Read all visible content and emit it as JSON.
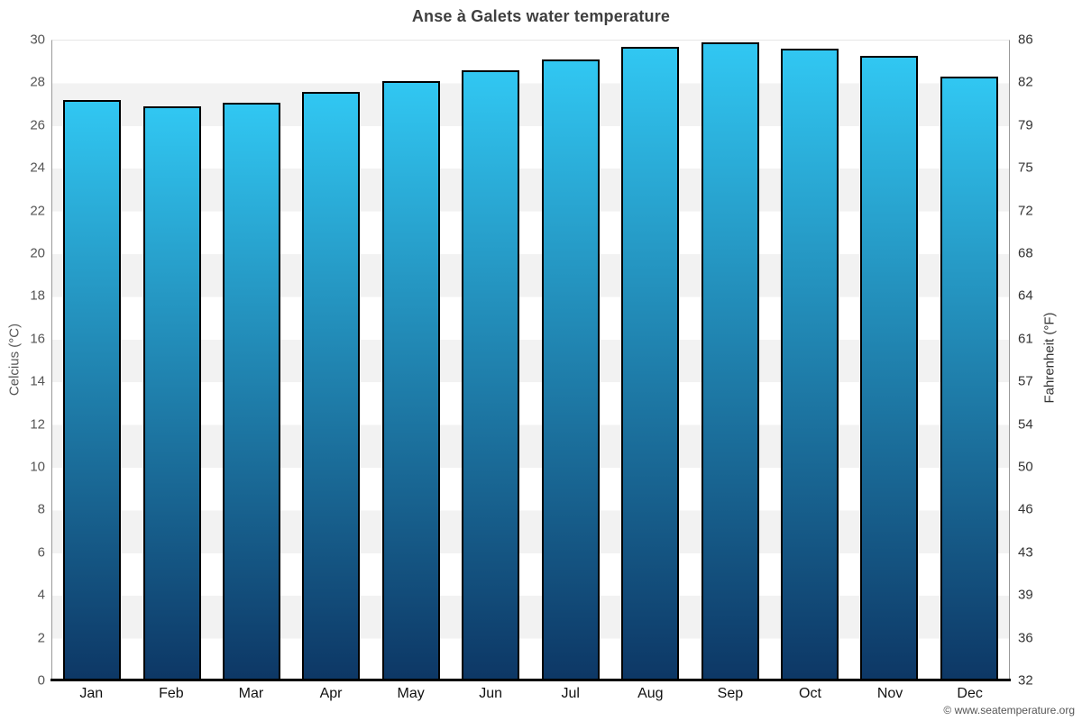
{
  "title": "Anse à Galets water temperature",
  "copyright": "© www.seatemperature.org",
  "axes": {
    "left_title": "Celcius (°C)",
    "right_title": "Fahrenheit (°F)"
  },
  "colors": {
    "bar_top": "#31c7f2",
    "bar_bottom": "#0d3765",
    "bar_border": "#000000",
    "band_gray": "#f2f2f2",
    "axis_line": "#999999",
    "baseline": "#000000",
    "title_text": "#3f3f3f"
  },
  "chart_data": {
    "type": "bar",
    "title": "Anse à Galets water temperature",
    "categories": [
      "Jan",
      "Feb",
      "Mar",
      "Apr",
      "May",
      "Jun",
      "Jul",
      "Aug",
      "Sep",
      "Oct",
      "Nov",
      "Dec"
    ],
    "values": [
      27.2,
      26.9,
      27.1,
      27.6,
      28.1,
      28.6,
      29.1,
      29.7,
      29.9,
      29.6,
      29.3,
      28.3
    ],
    "series_name": "Water temperature (°C)",
    "xlabel": "",
    "ylabel": "Celcius (°C)",
    "ylabel_right": "Fahrenheit (°F)",
    "ylim_celsius": [
      0,
      30
    ],
    "yticks_celsius": [
      0,
      2,
      4,
      6,
      8,
      10,
      12,
      14,
      16,
      18,
      20,
      22,
      24,
      26,
      28,
      30
    ],
    "yticks_fahrenheit": [
      32,
      36,
      39,
      43,
      46,
      50,
      54,
      57,
      61,
      64,
      68,
      72,
      75,
      79,
      82,
      86
    ],
    "grid": "alternating horizontal plot bands every 2°C (white / light gray)",
    "legend": "none",
    "bar_fill": "vertical gradient cyan to dark navy"
  }
}
